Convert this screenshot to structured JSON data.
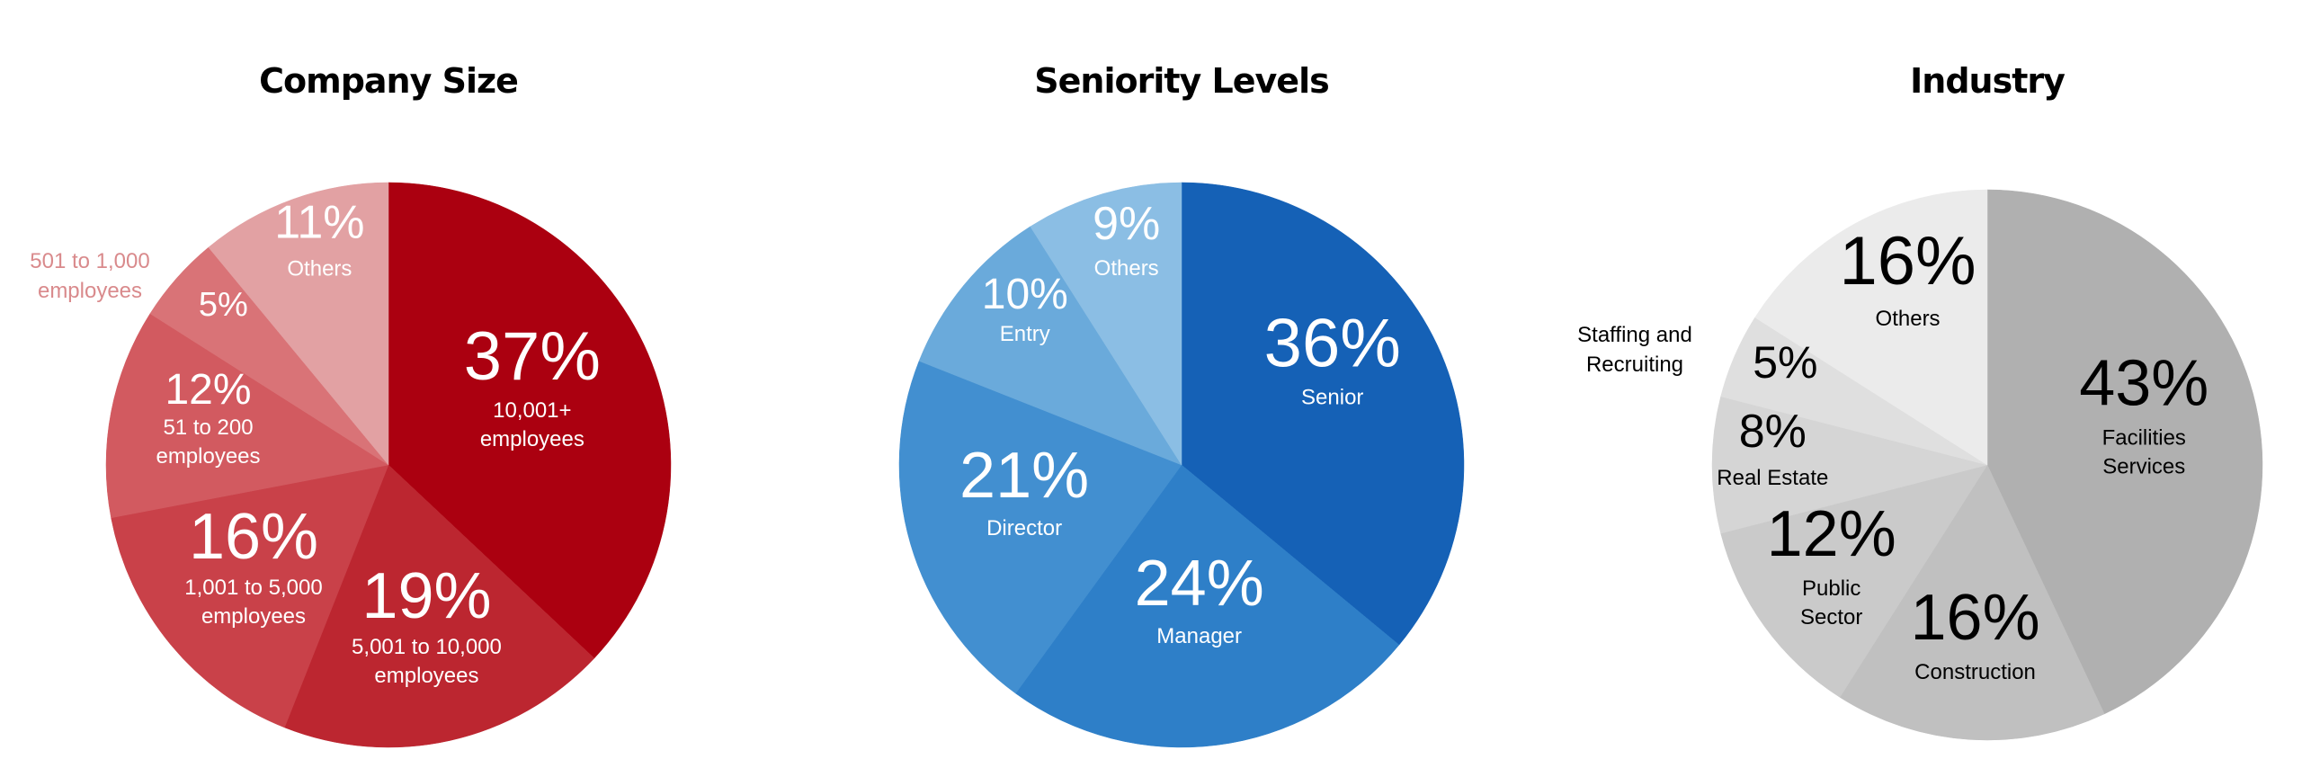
{
  "chart_data": [
    {
      "type": "pie",
      "title": "Company Size",
      "slices": [
        {
          "value": 37,
          "pct_label": "37%",
          "label": [
            "10,001+",
            "employees"
          ],
          "color": "#ab0010",
          "text_color": "#ffffff"
        },
        {
          "value": 19,
          "pct_label": "19%",
          "label": [
            "5,001 to 10,000",
            "employees"
          ],
          "color": "#bc2630",
          "text_color": "#ffffff"
        },
        {
          "value": 16,
          "pct_label": "16%",
          "label": [
            "1,001 to 5,000",
            "employees"
          ],
          "color": "#c94149",
          "text_color": "#ffffff"
        },
        {
          "value": 12,
          "pct_label": "12%",
          "label": [
            "51 to 200",
            "employees"
          ],
          "color": "#d25a60",
          "text_color": "#ffffff"
        },
        {
          "value": 5,
          "pct_label": "5%",
          "label": [],
          "color": "#d97377",
          "text_color": "#ffffff"
        },
        {
          "value": 11,
          "pct_label": "11%",
          "label": [
            "Others"
          ],
          "color": "#e2a1a3",
          "text_color": "#ffffff"
        }
      ],
      "callout": {
        "label": [
          "501 to 1,000",
          "employees"
        ],
        "color": "#d98a8c"
      }
    },
    {
      "type": "pie",
      "title": "Seniority Levels",
      "slices": [
        {
          "value": 36,
          "pct_label": "36%",
          "label": [
            "Senior"
          ],
          "color": "#1561b6",
          "text_color": "#ffffff"
        },
        {
          "value": 24,
          "pct_label": "24%",
          "label": [
            "Manager"
          ],
          "color": "#2e7fc8",
          "text_color": "#ffffff"
        },
        {
          "value": 21,
          "pct_label": "21%",
          "label": [
            "Director"
          ],
          "color": "#428fd0",
          "text_color": "#ffffff"
        },
        {
          "value": 10,
          "pct_label": "10%",
          "label": [
            "Entry"
          ],
          "color": "#6aaadb",
          "text_color": "#ffffff"
        },
        {
          "value": 9,
          "pct_label": "9%",
          "label": [
            "Others"
          ],
          "color": "#8bbee4",
          "text_color": "#ffffff"
        }
      ]
    },
    {
      "type": "pie",
      "title": "Industry",
      "slices": [
        {
          "value": 43,
          "pct_label": "43%",
          "label": [
            "Facilities",
            "Services"
          ],
          "color": "#b0b0b0",
          "text_color": "#000000"
        },
        {
          "value": 16,
          "pct_label": "16%",
          "label": [
            "Construction"
          ],
          "color": "#c0c0c0",
          "text_color": "#000000"
        },
        {
          "value": 12,
          "pct_label": "12%",
          "label": [
            "Public",
            "Sector"
          ],
          "color": "#cacaca",
          "text_color": "#000000"
        },
        {
          "value": 8,
          "pct_label": "8%",
          "label": [
            "Real Estate"
          ],
          "color": "#d5d5d5",
          "text_color": "#000000"
        },
        {
          "value": 5,
          "pct_label": "5%",
          "label": [],
          "color": "#dfdfdf",
          "text_color": "#000000"
        },
        {
          "value": 16,
          "pct_label": "16%",
          "label": [
            "Others"
          ],
          "color": "#ebebeb",
          "text_color": "#000000"
        }
      ],
      "callout": {
        "label": [
          "Staffing and",
          "Recruiting"
        ],
        "color": "#000000"
      }
    }
  ]
}
